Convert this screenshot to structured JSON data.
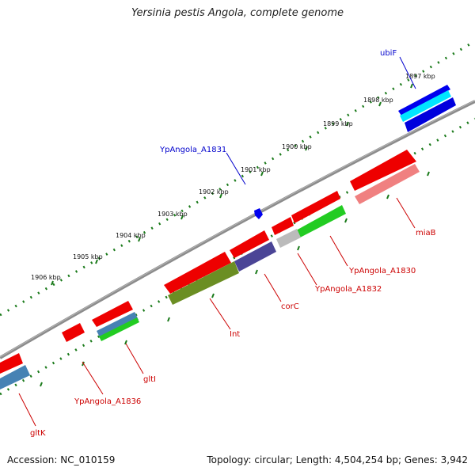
{
  "title": "Yersinia pestis Angola, complete genome",
  "footer": {
    "accession": "Accession: NC_010159",
    "summary": "Topology: circular; Length: 4,504,254 bp; Genes: 3,942"
  },
  "colors": {
    "backbone": "#808080",
    "forward_label": "#0000cc",
    "reverse_label": "#cc0000",
    "ticks": "#1a7a1a"
  },
  "kbp_ticks": [
    "1897 kbp",
    "1898 kbp",
    "1899 kbp",
    "1900 kbp",
    "1901 kbp",
    "1902 kbp",
    "1903 kbp",
    "1904 kbp",
    "1905 kbp",
    "1906 kbp"
  ],
  "gene_labels": {
    "ubiF": "ubiF",
    "YpAngola_A1831": "YpAngola_A1831",
    "miaB": "miaB",
    "YpAngola_A1830": "YpAngola_A1830",
    "YpAngola_A1832": "YpAngola_A1832",
    "corC": "corC",
    "Int": "Int",
    "gltI": "gltI",
    "YpAngola_A1836": "YpAngola_A1836",
    "gltK": "gltK"
  }
}
